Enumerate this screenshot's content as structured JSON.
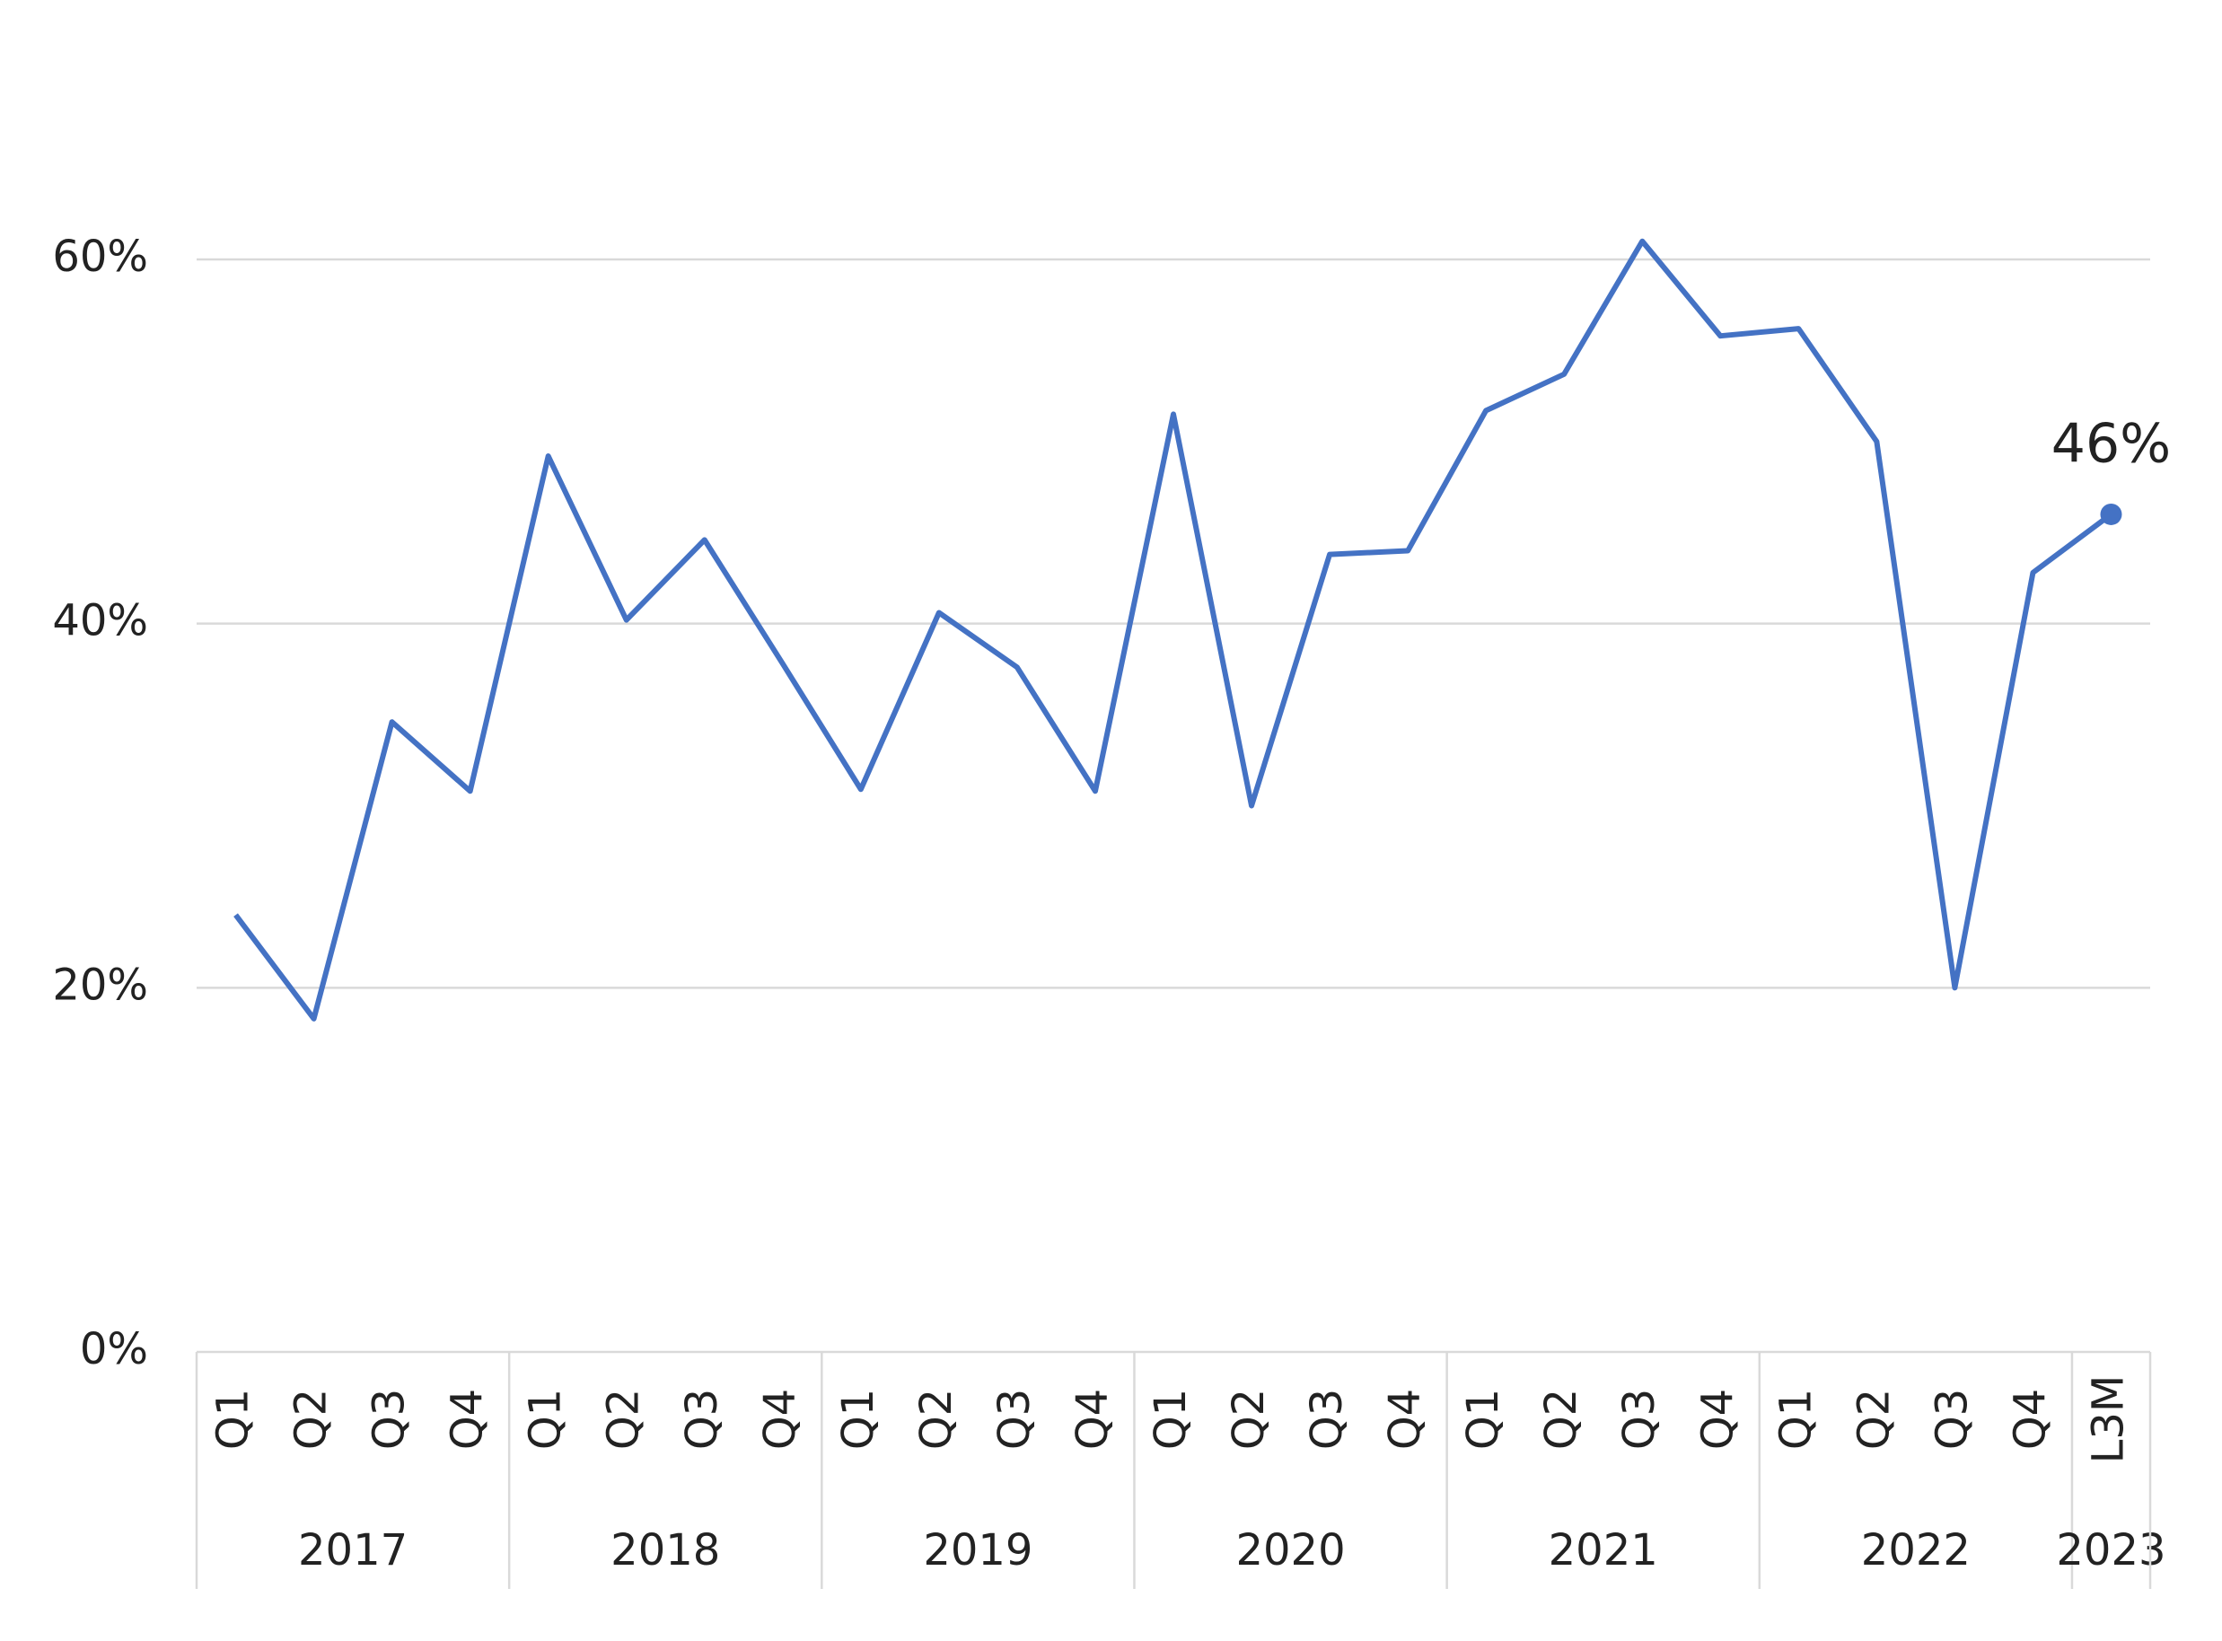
{
  "chart_data": {
    "type": "line",
    "groups": [
      {
        "label": "2017",
        "categories": [
          "Q1",
          "Q2",
          "Q3",
          "Q4"
        ]
      },
      {
        "label": "2018",
        "categories": [
          "Q1",
          "Q2",
          "Q3",
          "Q4"
        ]
      },
      {
        "label": "2019",
        "categories": [
          "Q1",
          "Q2",
          "Q3",
          "Q4"
        ]
      },
      {
        "label": "2020",
        "categories": [
          "Q1",
          "Q2",
          "Q3",
          "Q4"
        ]
      },
      {
        "label": "2021",
        "categories": [
          "Q1",
          "Q2",
          "Q3",
          "Q4"
        ]
      },
      {
        "label": "2022",
        "categories": [
          "Q1",
          "Q2",
          "Q3",
          "Q4"
        ]
      },
      {
        "label": "2023",
        "categories": [
          "L3M"
        ]
      }
    ],
    "values": [
      24,
      18.3,
      34.6,
      30.8,
      49.2,
      40.2,
      44.6,
      37.8,
      30.9,
      40.6,
      37.6,
      30.8,
      51.5,
      30.0,
      43.8,
      44.0,
      51.7,
      53.7,
      61.0,
      55.8,
      56.2,
      50.0,
      20.0,
      42.8,
      46
    ],
    "value_labels": [
      null,
      null,
      null,
      null,
      null,
      null,
      null,
      null,
      null,
      null,
      null,
      null,
      null,
      null,
      null,
      null,
      null,
      null,
      null,
      null,
      null,
      null,
      null,
      null,
      "46%"
    ],
    "color": "#4472c4",
    "ylim": [
      0,
      70
    ],
    "yticks": [
      {
        "value": 0,
        "label": "0%"
      },
      {
        "value": 20,
        "label": "20%"
      },
      {
        "value": 40,
        "label": "40%"
      },
      {
        "value": 60,
        "label": "60%"
      }
    ],
    "grid": true
  }
}
